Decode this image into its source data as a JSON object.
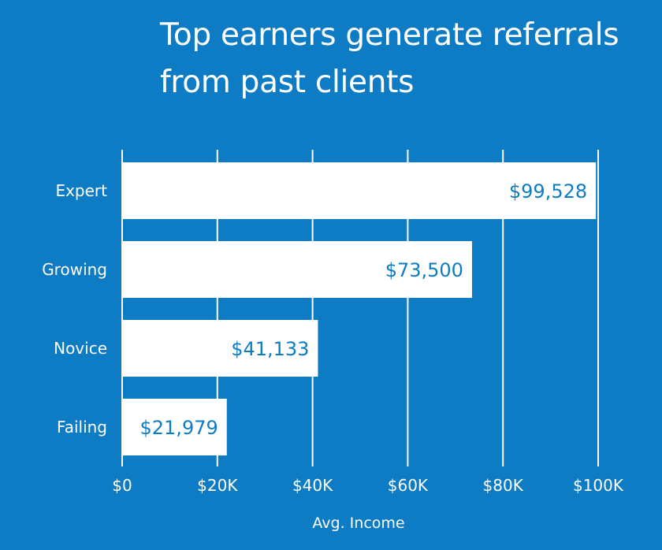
{
  "chart_data": {
    "type": "bar",
    "orientation": "horizontal",
    "title_lines": [
      "Top earners generate referrals",
      "from past clients"
    ],
    "categories": [
      "Expert",
      "Growing",
      "Novice",
      "Failing"
    ],
    "values": [
      99528,
      73500,
      41133,
      21979
    ],
    "value_labels": [
      "$99,528",
      "$73,500",
      "$41,133",
      "$21,979"
    ],
    "xlabel": "Avg. Income",
    "ylabel": "",
    "xlim": [
      0,
      100000
    ],
    "x_ticks": [
      0,
      20000,
      40000,
      60000,
      80000,
      100000
    ],
    "x_tick_labels": [
      "$0",
      "$20K",
      "$40K",
      "$60K",
      "$80K",
      "$100K"
    ],
    "grid": "vertical",
    "legend": "none"
  },
  "colors": {
    "background": "#0d7cc4",
    "bar": "#ffffff",
    "grid": "#ffffff",
    "text": "#ffffff",
    "value_text": "#0d7cc4"
  }
}
